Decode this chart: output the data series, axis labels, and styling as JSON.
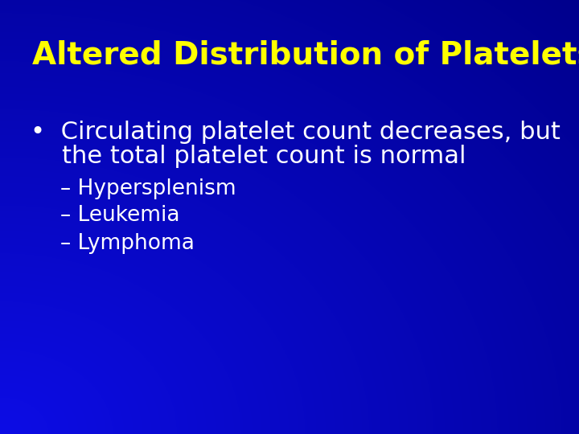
{
  "title": "Altered Distribution of Platelets",
  "title_color": "#FFFF00",
  "title_fontsize": 28,
  "bullet_text_line1": "•  Circulating platelet count decreases, but",
  "bullet_text_line2": "    the total platelet count is normal",
  "bullet_color": "#FFFFFF",
  "bullet_fontsize": 22,
  "sub_items": [
    "– Hypersplenism",
    "– Leukemia",
    "– Lymphoma"
  ],
  "sub_color": "#FFFFFF",
  "sub_fontsize": 19,
  "bg_dark": "#00008B",
  "bg_mid": "#0000CC",
  "bg_bright": "#2233EE"
}
